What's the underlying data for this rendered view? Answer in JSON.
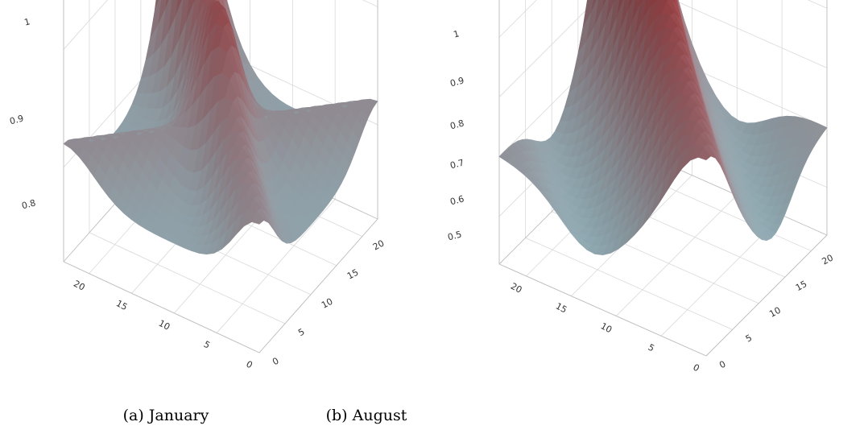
{
  "colors": {
    "peak": "#b40000",
    "low": "#aedde8",
    "grid": "#d9d9d9",
    "axis_line": "#bdbdbd"
  },
  "chart_data": [
    {
      "type": "surface",
      "caption": "(a) January",
      "zlim": [
        0.72,
        1.0
      ],
      "z_ticks": [
        "1",
        "0.9",
        "0.8"
      ],
      "x_ticks": [
        "0",
        "5",
        "10",
        "15",
        "20"
      ],
      "y_ticks": [
        "0",
        "5",
        "10",
        "15",
        "20"
      ],
      "xlim": [
        0,
        23
      ],
      "ylim": [
        0,
        23
      ],
      "grid": true,
      "surface_shape": {
        "peak_z": 1.0,
        "ridge_end_z": [
          0.73,
          0.75
        ],
        "min_z": 0.72
      }
    },
    {
      "type": "surface",
      "caption": "(b) August",
      "zlim": [
        0.42,
        1.0
      ],
      "z_ticks": [
        "1",
        "0.9",
        "0.8",
        "0.7",
        "0.6",
        "0.5"
      ],
      "x_ticks": [
        "0",
        "5",
        "10",
        "15",
        "20"
      ],
      "y_ticks": [
        "0",
        "5",
        "10",
        "15",
        "20"
      ],
      "xlim": [
        0,
        23
      ],
      "ylim": [
        0,
        23
      ],
      "grid": true,
      "surface_shape": {
        "peak_z": 1.0,
        "ridge_end_z": [
          0.58,
          0.58
        ],
        "min_z": 0.45
      }
    }
  ]
}
